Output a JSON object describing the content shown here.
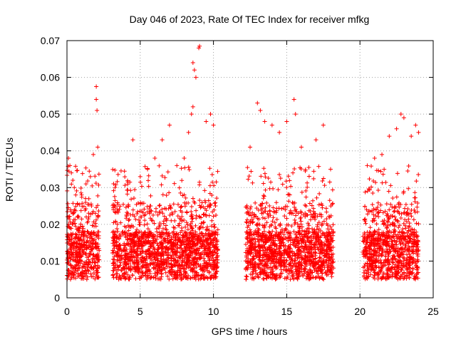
{
  "chart_data": {
    "type": "scatter",
    "title": "Day 046 of 2023, Rate Of TEC Index for receiver mfkg",
    "xlabel": "GPS time / hours",
    "ylabel": "ROTI / TECUs",
    "xlim": [
      0,
      25
    ],
    "ylim": [
      0,
      0.07
    ],
    "x_ticks": [
      "0",
      "5",
      "10",
      "15",
      "20",
      "25"
    ],
    "y_ticks": [
      "0",
      "0.01",
      "0.02",
      "0.03",
      "0.04",
      "0.05",
      "0.06",
      "0.07"
    ],
    "grid": true,
    "marker": "+",
    "color": "#ff0000",
    "coverage_windows": [
      [
        0.0,
        2.2
      ],
      [
        3.1,
        10.3
      ],
      [
        12.2,
        18.2
      ],
      [
        20.2,
        24.0
      ]
    ],
    "series": [
      {
        "name": "ROTI",
        "points": [
          [
            0.1,
            0.038
          ],
          [
            0.2,
            0.036
          ],
          [
            0.3,
            0.034
          ],
          [
            0.4,
            0.032
          ],
          [
            0.5,
            0.03
          ],
          [
            0.6,
            0.028
          ],
          [
            1.0,
            0.028
          ],
          [
            1.3,
            0.031
          ],
          [
            1.6,
            0.033
          ],
          [
            1.8,
            0.039
          ],
          [
            2.0,
            0.054
          ],
          [
            2.0,
            0.0575
          ],
          [
            2.05,
            0.051
          ],
          [
            2.1,
            0.041
          ],
          [
            4.5,
            0.043
          ],
          [
            5.0,
            0.033
          ],
          [
            5.5,
            0.035
          ],
          [
            6.0,
            0.038
          ],
          [
            6.5,
            0.043
          ],
          [
            7.0,
            0.047
          ],
          [
            7.5,
            0.036
          ],
          [
            8.0,
            0.038
          ],
          [
            8.3,
            0.045
          ],
          [
            8.5,
            0.05
          ],
          [
            8.6,
            0.052
          ],
          [
            8.6,
            0.064
          ],
          [
            8.7,
            0.062
          ],
          [
            8.8,
            0.06
          ],
          [
            9.0,
            0.068
          ],
          [
            9.05,
            0.0685
          ],
          [
            9.5,
            0.048
          ],
          [
            9.8,
            0.05
          ],
          [
            10.0,
            0.047
          ],
          [
            12.5,
            0.041
          ],
          [
            13.0,
            0.053
          ],
          [
            13.2,
            0.051
          ],
          [
            13.5,
            0.048
          ],
          [
            14.0,
            0.047
          ],
          [
            14.5,
            0.045
          ],
          [
            15.0,
            0.048
          ],
          [
            15.5,
            0.054
          ],
          [
            15.6,
            0.05
          ],
          [
            16.0,
            0.041
          ],
          [
            17.0,
            0.043
          ],
          [
            17.5,
            0.047
          ],
          [
            20.5,
            0.036
          ],
          [
            21.0,
            0.038
          ],
          [
            21.5,
            0.039
          ],
          [
            22.0,
            0.044
          ],
          [
            22.5,
            0.046
          ],
          [
            22.8,
            0.05
          ],
          [
            23.0,
            0.049
          ],
          [
            23.5,
            0.044
          ],
          [
            23.8,
            0.047
          ],
          [
            24.0,
            0.045
          ]
        ]
      }
    ]
  }
}
